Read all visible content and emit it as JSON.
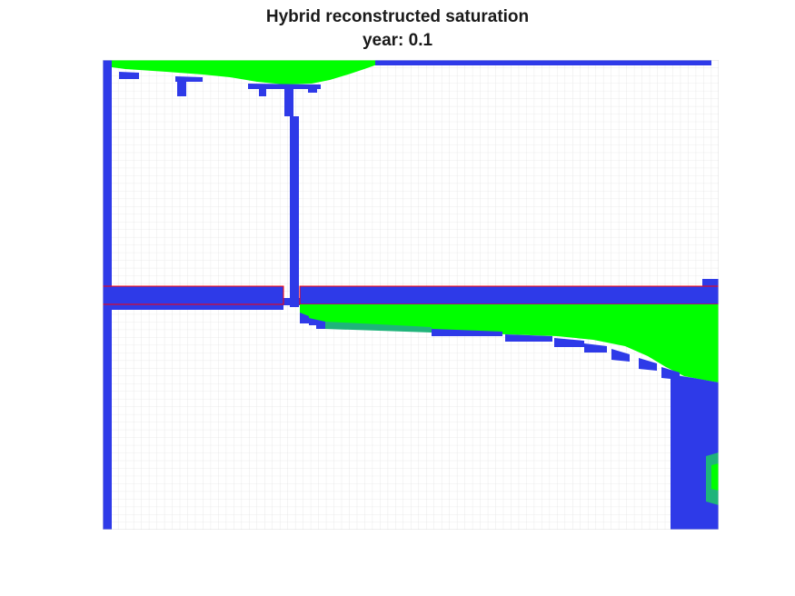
{
  "figure": {
    "title": "Hybrid reconstructed saturation",
    "subtitle": "year: 0.1"
  },
  "colors": {
    "water_phase": "#2e3ae8",
    "gas_phase": "#00ff00",
    "mixed_phase": "#1fb47a",
    "empty_cell": "#ffffff",
    "grid_line": "#dcdcdc",
    "seal_outline": "#ff0000"
  }
}
